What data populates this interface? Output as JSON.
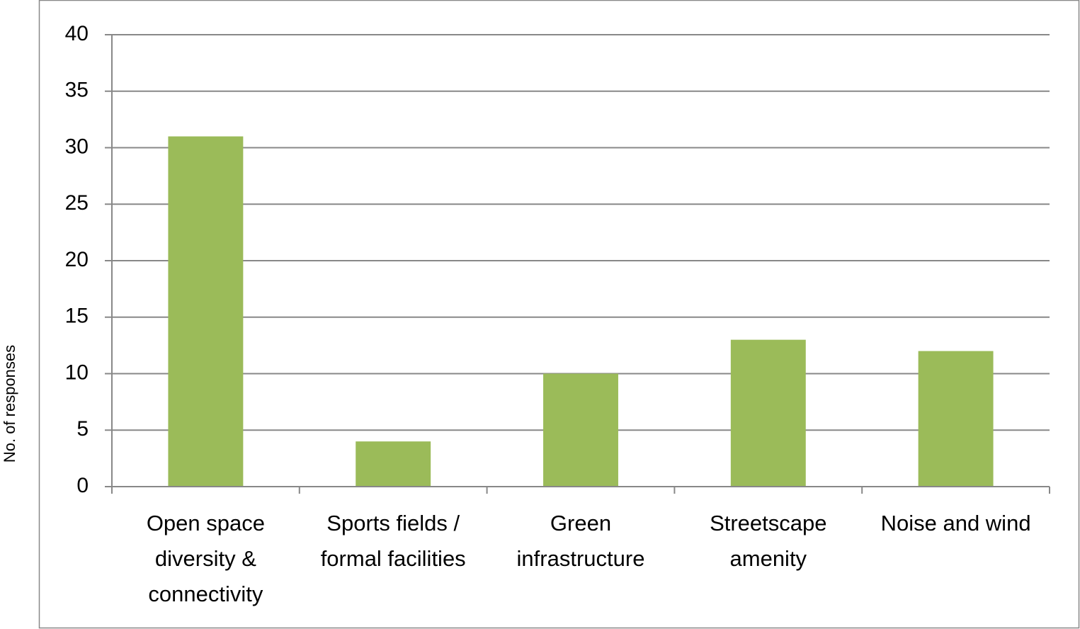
{
  "chart_data": {
    "type": "bar",
    "y_label": "No. of responses",
    "categories": [
      "Open space diversity & connectivity",
      "Sports fields / formal facilities",
      "Green infrastructure",
      "Streetscape amenity",
      "Noise and wind"
    ],
    "values": [
      31,
      4,
      10,
      13,
      12
    ],
    "color": "#9bbb59",
    "ylim": [
      0,
      40
    ],
    "yticks": [
      0,
      5,
      10,
      15,
      20,
      25,
      30,
      35,
      40
    ],
    "grid": true
  }
}
